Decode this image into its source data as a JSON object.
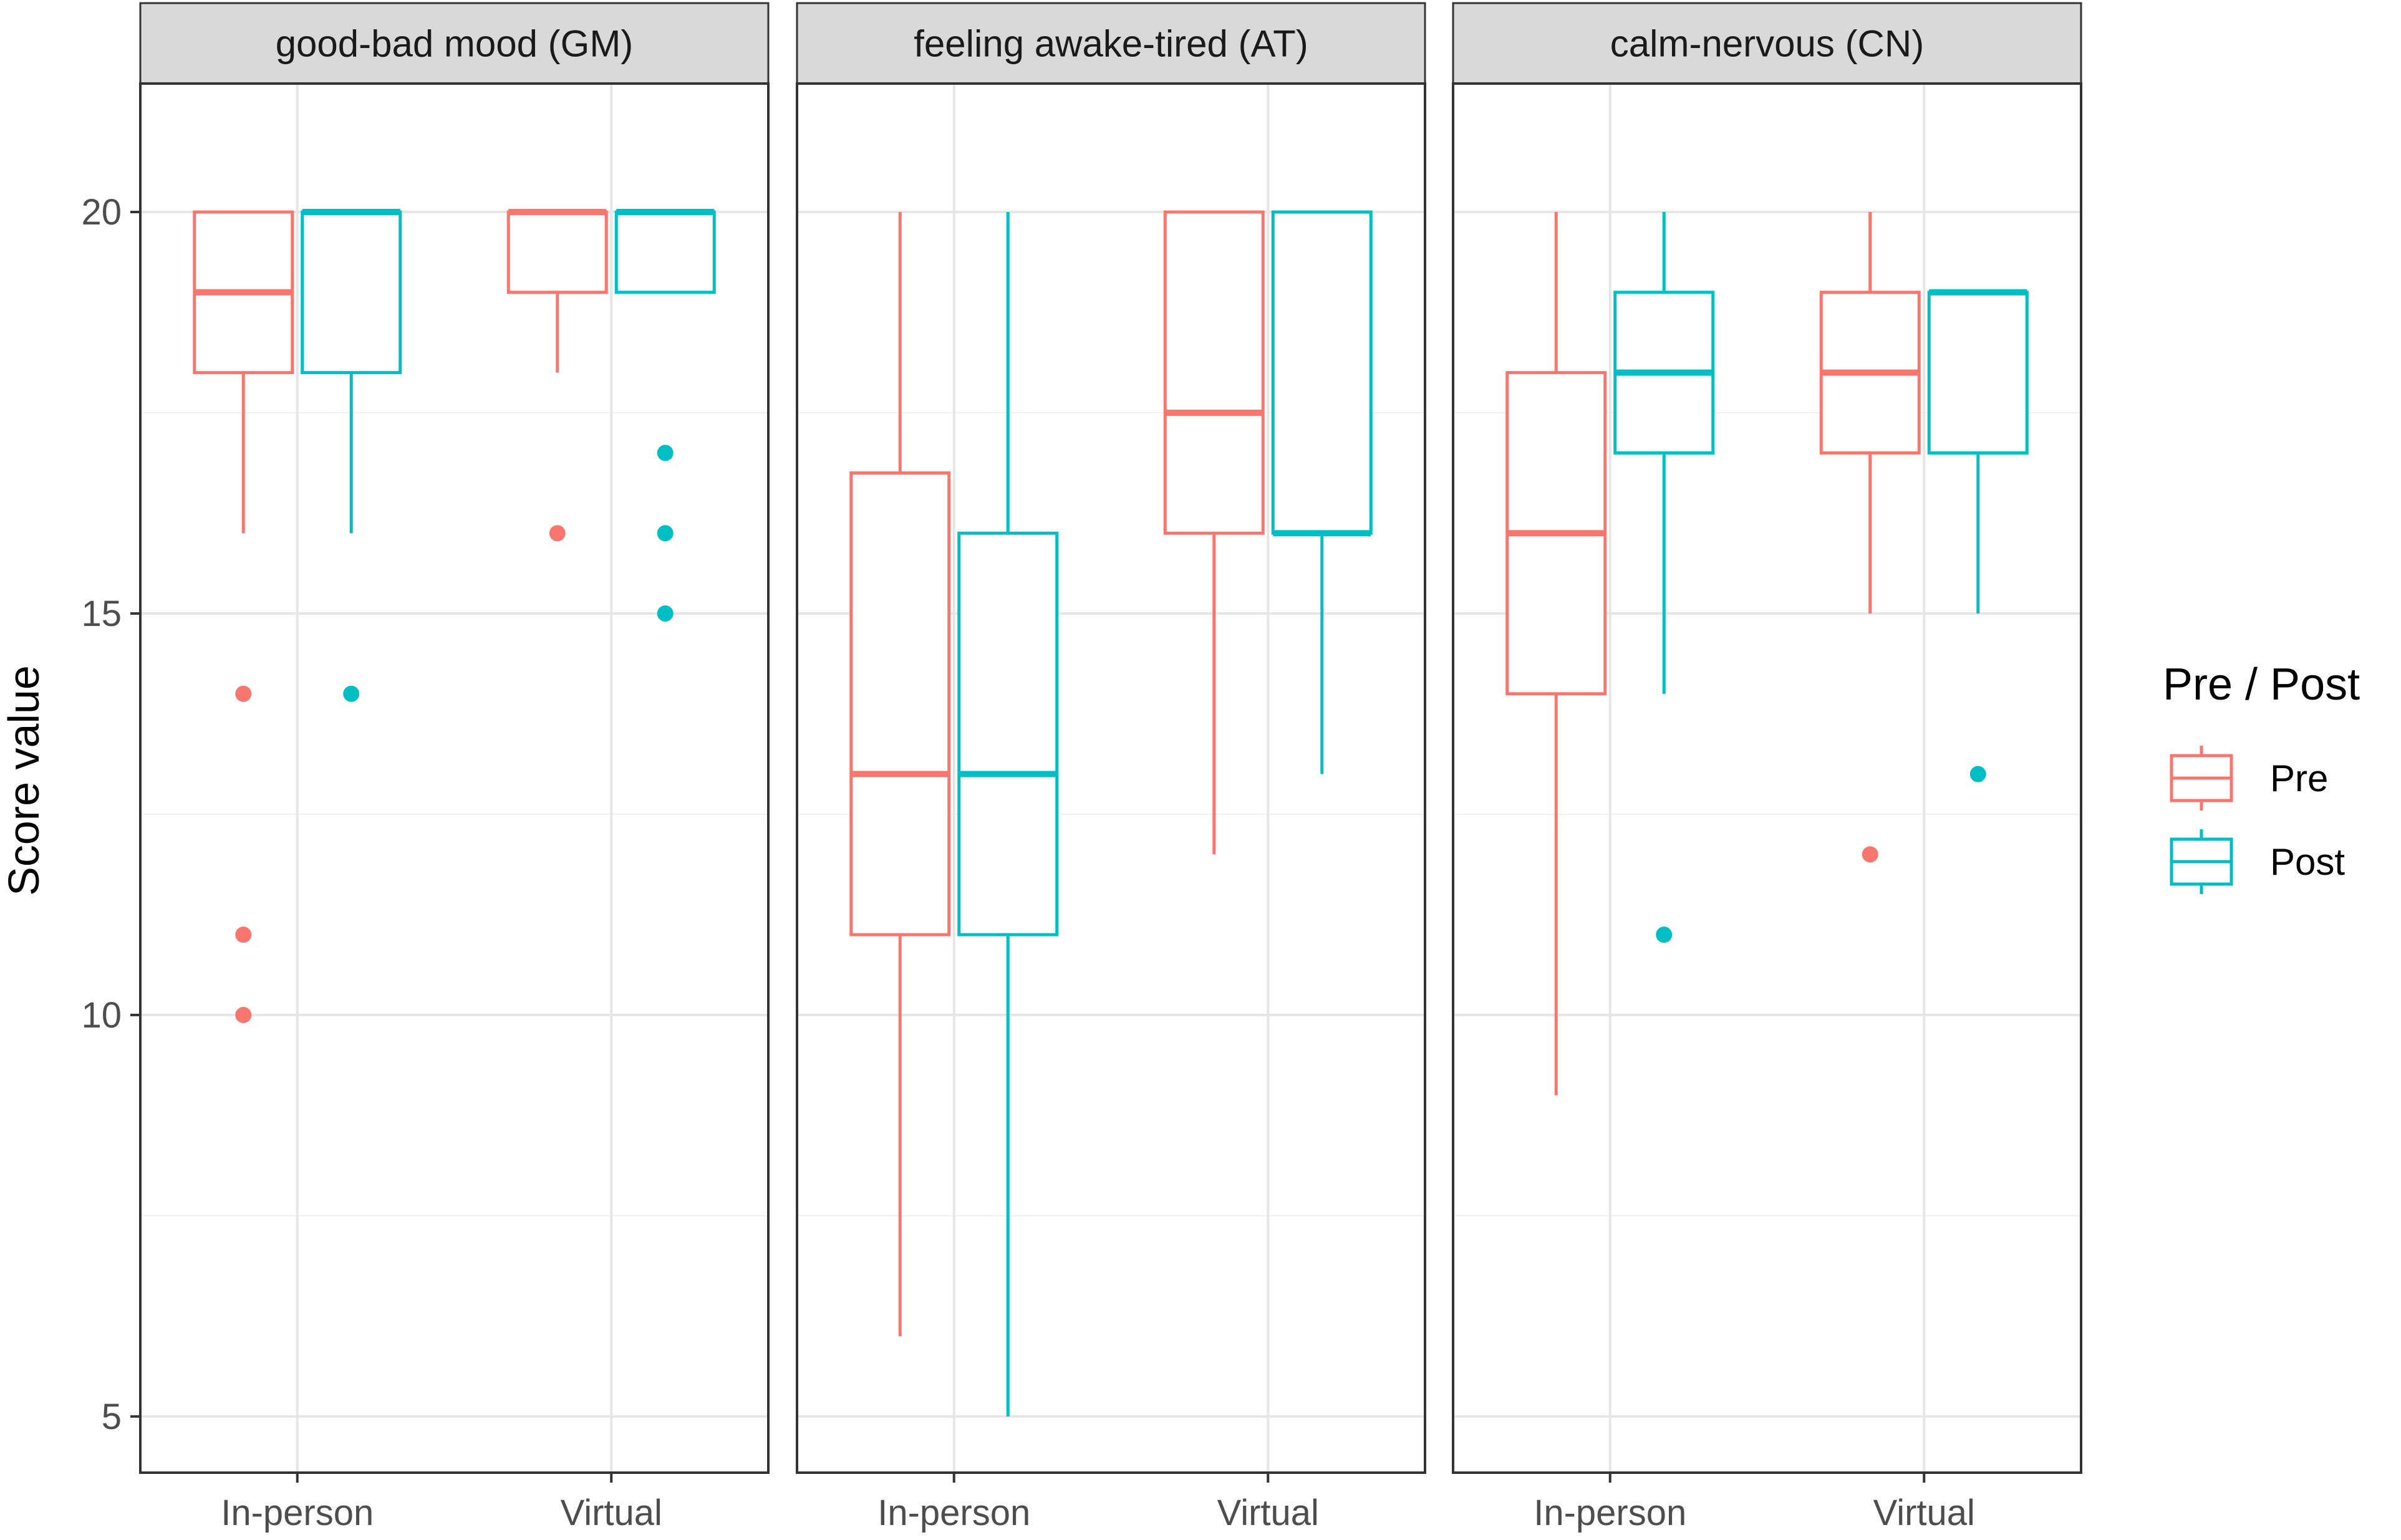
{
  "chart_data": {
    "type": "boxplot",
    "ylabel": "Score value",
    "ylim": [
      4.3,
      21.6
    ],
    "y_ticks": [
      5,
      10,
      15,
      20
    ],
    "y_tick_labels": [
      "5",
      "10",
      "15",
      "20"
    ],
    "categories": [
      "In-person",
      "Virtual"
    ],
    "legend": {
      "title": "Pre / Post",
      "position": "right",
      "entries": [
        {
          "name": "Pre",
          "color": "#F8766D"
        },
        {
          "name": "Post",
          "color": "#00BFC4"
        }
      ]
    },
    "panels": [
      {
        "title": "good-bad mood (GM)",
        "groups": [
          {
            "category": "In-person",
            "series": "Pre",
            "min": 16,
            "q1": 18,
            "median": 19,
            "q3": 20,
            "max": 20,
            "outliers": [
              14,
              11,
              10
            ]
          },
          {
            "category": "In-person",
            "series": "Post",
            "min": 16,
            "q1": 18,
            "median": 20,
            "q3": 20,
            "max": 20,
            "outliers": [
              14
            ]
          },
          {
            "category": "Virtual",
            "series": "Pre",
            "min": 18,
            "q1": 19,
            "median": 20,
            "q3": 20,
            "max": 20,
            "outliers": [
              16
            ]
          },
          {
            "category": "Virtual",
            "series": "Post",
            "min": 19,
            "q1": 19,
            "median": 20,
            "q3": 20,
            "max": 20,
            "outliers": [
              17,
              16,
              15
            ]
          }
        ]
      },
      {
        "title": "feeling awake-tired (AT)",
        "groups": [
          {
            "category": "In-person",
            "series": "Pre",
            "min": 6,
            "q1": 11,
            "median": 13,
            "q3": 16.75,
            "max": 20,
            "outliers": []
          },
          {
            "category": "In-person",
            "series": "Post",
            "min": 5,
            "q1": 11,
            "median": 13,
            "q3": 16,
            "max": 20,
            "outliers": []
          },
          {
            "category": "Virtual",
            "series": "Pre",
            "min": 12,
            "q1": 16,
            "median": 17.5,
            "q3": 20,
            "max": 20,
            "outliers": []
          },
          {
            "category": "Virtual",
            "series": "Post",
            "min": 13,
            "q1": 16,
            "median": 16,
            "q3": 20,
            "max": 20,
            "outliers": []
          }
        ]
      },
      {
        "title": "calm-nervous (CN)",
        "groups": [
          {
            "category": "In-person",
            "series": "Pre",
            "min": 9,
            "q1": 14,
            "median": 16,
            "q3": 18,
            "max": 20,
            "outliers": []
          },
          {
            "category": "In-person",
            "series": "Post",
            "min": 14,
            "q1": 17,
            "median": 18,
            "q3": 19,
            "max": 20,
            "outliers": [
              11
            ]
          },
          {
            "category": "Virtual",
            "series": "Pre",
            "min": 15,
            "q1": 17,
            "median": 18,
            "q3": 19,
            "max": 20,
            "outliers": [
              12
            ]
          },
          {
            "category": "Virtual",
            "series": "Post",
            "min": 15,
            "q1": 17,
            "median": 19,
            "q3": 19,
            "max": 19,
            "outliers": [
              13
            ]
          }
        ]
      }
    ]
  }
}
